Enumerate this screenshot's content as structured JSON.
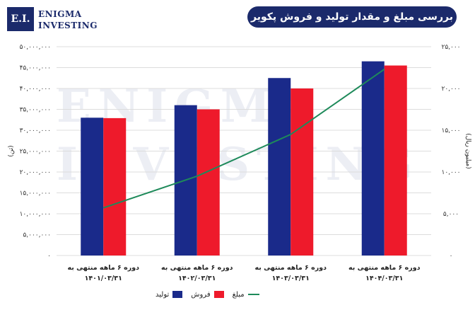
{
  "logo": {
    "mark": "E.I.",
    "line1": "ENIGMA",
    "line2": "INVESTING"
  },
  "title": "بررسی مبلغ و مقدار تولید و فروش پکویر",
  "watermark": {
    "line1": "ENIGMA",
    "line2": "INVESTING"
  },
  "colors": {
    "production": "#1a2a8a",
    "sales": "#ee1a2b",
    "amount": "#1e8a5a"
  },
  "chart_data": {
    "type": "bar",
    "categories": [
      [
        "دوره ۶ ماهه منتهی به",
        "۱۴۰۱/۰۳/۳۱"
      ],
      [
        "دوره ۶ ماهه منتهی به",
        "۱۴۰۲/۰۳/۳۱"
      ],
      [
        "دوره ۶ ماهه منتهی به",
        "۱۴۰۳/۰۳/۳۱"
      ],
      [
        "دوره ۶ ماهه منتهی به",
        "۱۴۰۴/۰۳/۳۱"
      ]
    ],
    "series": [
      {
        "name": "تولید",
        "type": "bar",
        "axis": "left",
        "values": [
          33000000,
          36000000,
          42500000,
          46500000
        ]
      },
      {
        "name": "فروش",
        "type": "bar",
        "axis": "left",
        "values": [
          32900000,
          35000000,
          40000000,
          45500000
        ]
      },
      {
        "name": "مبلغ",
        "type": "line",
        "axis": "right",
        "values": [
          5700,
          9500,
          14500,
          22300
        ]
      }
    ],
    "ylabel_left": "(تن)",
    "ylabel_right": "(میلیون ریال)",
    "ylim_left": [
      0,
      50000000
    ],
    "ylim_right": [
      0,
      25000
    ],
    "yticks_left": [
      "۰",
      "۵,۰۰۰,۰۰۰",
      "۱۰,۰۰۰,۰۰۰",
      "۱۵,۰۰۰,۰۰۰",
      "۲۰,۰۰۰,۰۰۰",
      "۲۵,۰۰۰,۰۰۰",
      "۳۰,۰۰۰,۰۰۰",
      "۳۵,۰۰۰,۰۰۰",
      "۴۰,۰۰۰,۰۰۰",
      "۴۵,۰۰۰,۰۰۰",
      "۵۰,۰۰۰,۰۰۰"
    ],
    "yticks_right": [
      "۰",
      "۵,۰۰۰",
      "۱۰,۰۰۰",
      "۱۵,۰۰۰",
      "۲۰,۰۰۰",
      "۲۵,۰۰۰"
    ],
    "grid": true,
    "legend_position": "bottom"
  }
}
